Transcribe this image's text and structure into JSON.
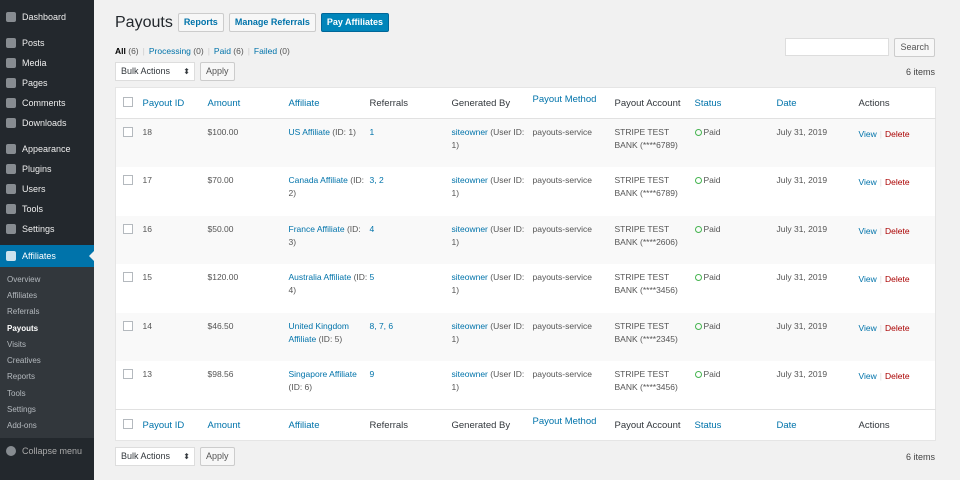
{
  "sidebar": {
    "items": [
      {
        "label": "Dashboard",
        "icon": "dashboard-icon"
      },
      {
        "label": "Posts",
        "icon": "pin-icon"
      },
      {
        "label": "Media",
        "icon": "media-icon"
      },
      {
        "label": "Pages",
        "icon": "pages-icon"
      },
      {
        "label": "Comments",
        "icon": "comment-icon"
      },
      {
        "label": "Downloads",
        "icon": "download-icon"
      },
      {
        "label": "Appearance",
        "icon": "brush-icon"
      },
      {
        "label": "Plugins",
        "icon": "plugin-icon"
      },
      {
        "label": "Users",
        "icon": "user-icon"
      },
      {
        "label": "Tools",
        "icon": "wrench-icon"
      },
      {
        "label": "Settings",
        "icon": "settings-icon"
      }
    ],
    "active": {
      "label": "Affiliates",
      "icon": "affiliates-icon"
    },
    "submenu": [
      "Overview",
      "Affiliates",
      "Referrals",
      "Payouts",
      "Visits",
      "Creatives",
      "Reports",
      "Tools",
      "Settings",
      "Add-ons"
    ],
    "current_sub": "Payouts",
    "collapse": "Collapse menu"
  },
  "header": {
    "title": "Payouts",
    "reports": "Reports",
    "manage_referrals": "Manage Referrals",
    "pay_affiliates": "Pay Affiliates"
  },
  "filters": [
    {
      "label": "All",
      "count": "(6)"
    },
    {
      "label": "Processing",
      "count": "(0)"
    },
    {
      "label": "Paid",
      "count": "(6)"
    },
    {
      "label": "Failed",
      "count": "(0)"
    }
  ],
  "search": {
    "button": "Search",
    "value": ""
  },
  "bulk": {
    "selected": "Bulk Actions",
    "apply": "Apply",
    "items_count": "6 items"
  },
  "columns": [
    "Payout ID",
    "Amount",
    "Affiliate",
    "Referrals",
    "Generated By",
    "Payout Method",
    "Payout Account",
    "Status",
    "Date",
    "Actions"
  ],
  "rows": [
    {
      "id": "18",
      "amount": "$100.00",
      "affiliate": "US Affiliate",
      "affiliate_id": "(ID: 1)",
      "referrals": "1",
      "user": "siteowner",
      "user_id": "(User ID: 1)",
      "method": "payouts-service",
      "account": "STRIPE TEST BANK (****6789)",
      "status": "Paid",
      "date": "July 31, 2019"
    },
    {
      "id": "17",
      "amount": "$70.00",
      "affiliate": "Canada Affiliate",
      "affiliate_id": "(ID: 2)",
      "referrals": "3, 2",
      "user": "siteowner",
      "user_id": "(User ID: 1)",
      "method": "payouts-service",
      "account": "STRIPE TEST BANK (****6789)",
      "status": "Paid",
      "date": "July 31, 2019"
    },
    {
      "id": "16",
      "amount": "$50.00",
      "affiliate": "France Affiliate",
      "affiliate_id": "(ID: 3)",
      "referrals": "4",
      "user": "siteowner",
      "user_id": "(User ID: 1)",
      "method": "payouts-service",
      "account": "STRIPE TEST BANK (****2606)",
      "status": "Paid",
      "date": "July 31, 2019"
    },
    {
      "id": "15",
      "amount": "$120.00",
      "affiliate": "Australia Affiliate",
      "affiliate_id": "(ID: 4)",
      "referrals": "5",
      "user": "siteowner",
      "user_id": "(User ID: 1)",
      "method": "payouts-service",
      "account": "STRIPE TEST BANK (****3456)",
      "status": "Paid",
      "date": "July 31, 2019"
    },
    {
      "id": "14",
      "amount": "$46.50",
      "affiliate": "United Kingdom Affiliate",
      "affiliate_id": "(ID: 5)",
      "referrals": "8, 7, 6",
      "user": "siteowner",
      "user_id": "(User ID: 1)",
      "method": "payouts-service",
      "account": "STRIPE TEST BANK (****2345)",
      "status": "Paid",
      "date": "July 31, 2019"
    },
    {
      "id": "13",
      "amount": "$98.56",
      "affiliate": "Singapore Affiliate",
      "affiliate_id": "(ID: 6)",
      "referrals": "9",
      "user": "siteowner",
      "user_id": "(User ID: 1)",
      "method": "payouts-service",
      "account": "STRIPE TEST BANK (****3456)",
      "status": "Paid",
      "date": "July 31, 2019"
    }
  ],
  "actions": {
    "view": "View",
    "delete": "Delete"
  },
  "colors": {
    "accent": "#0073aa",
    "primary_button": "#0085ba",
    "paid": "#46b450",
    "delete": "#a00",
    "sidebar": "#23282d"
  }
}
